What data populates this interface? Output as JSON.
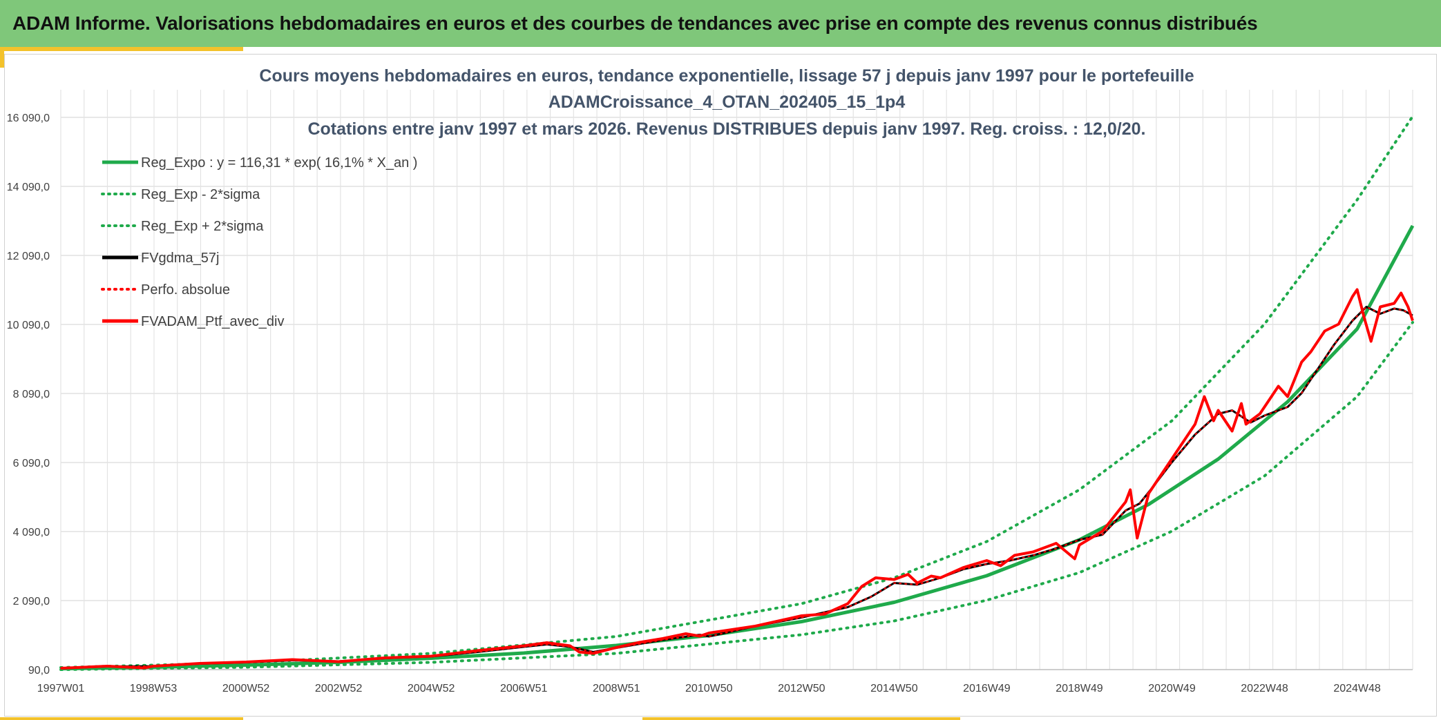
{
  "header": {
    "title": "ADAM Informe. Valorisations hebdomadaires en euros et des courbes de tendances avec prise en compte des revenus connus distribués"
  },
  "colors": {
    "banner": "#7fc77a",
    "accent": "#f3c22b",
    "trend": "#1faa4b",
    "band": "#1faa4b",
    "fv": "#000000",
    "portfolio": "#ff0000"
  },
  "chart_data": {
    "type": "line",
    "title_lines": [
      "Cours moyens hebdomadaires en euros, tendance exponentielle, lissage 57 j depuis janv 1997 pour le portefeuille",
      "ADAMCroissance_4_OTAN_202405_15_1p4",
      "Cotations entre janv 1997 et mars 2026. Revenus DISTRIBUES depuis janv 1997. Reg. croiss. : 12,0/20."
    ],
    "x_tick_labels": [
      "1997W01",
      "1998W53",
      "2000W52",
      "2002W52",
      "2004W52",
      "2006W51",
      "2008W51",
      "2010W50",
      "2012W50",
      "2014W50",
      "2016W49",
      "2018W49",
      "2020W49",
      "2022W48",
      "2024W48"
    ],
    "x_range_years": [
      1997.0,
      2026.2
    ],
    "y_ticks": [
      90,
      2090,
      4090,
      6090,
      8090,
      10090,
      12090,
      14090,
      16090
    ],
    "y_tick_labels": [
      "90,0",
      "2 090,0",
      "4 090,0",
      "6 090,0",
      "8 090,0",
      "10 090,0",
      "12 090,0",
      "14 090,0",
      "16 090,0"
    ],
    "ylim": [
      90,
      16090
    ],
    "grid": true,
    "legend_position": "top-left",
    "legend": [
      {
        "label": "Reg_Expo : y = 116,31 * exp( 16,1% *  X_an )",
        "style": "solid",
        "color": "#1faa4b"
      },
      {
        "label": "Reg_Exp - 2*sigma",
        "style": "dotted",
        "color": "#1faa4b"
      },
      {
        "label": "Reg_Exp + 2*sigma",
        "style": "dotted",
        "color": "#1faa4b"
      },
      {
        "label": "FVgdma_57j",
        "style": "solid",
        "color": "#000000"
      },
      {
        "label": "Perfo. absolue",
        "style": "dotted",
        "color": "#ff0000"
      },
      {
        "label": "FVADAM_Ptf_avec_div",
        "style": "solid",
        "color": "#ff0000"
      }
    ],
    "series": [
      {
        "name": "Reg_Expo : y = 116,31 * exp( 16,1% *  X_an )",
        "x": [
          1997.0,
          1999.0,
          2001.0,
          2003.0,
          2005.0,
          2007.0,
          2009.0,
          2011.0,
          2013.0,
          2015.0,
          2017.0,
          2019.0,
          2020.5,
          2022.0,
          2023.5,
          2025.0,
          2026.2
        ],
        "y": [
          116,
          160,
          220,
          300,
          420,
          570,
          790,
          1080,
          1480,
          2040,
          2810,
          3850,
          4880,
          6190,
          7850,
          9960,
          12950
        ]
      },
      {
        "name": "Reg_Exp - 2*sigma",
        "x": [
          1997.0,
          2001.0,
          2005.0,
          2009.0,
          2013.0,
          2015.0,
          2017.0,
          2019.0,
          2021.0,
          2023.0,
          2025.0,
          2026.2
        ],
        "y": [
          90,
          160,
          300,
          560,
          1100,
          1500,
          2100,
          2900,
          4100,
          5700,
          8000,
          10150
        ]
      },
      {
        "name": "Reg_Exp + 2*sigma",
        "x": [
          1997.0,
          2001.0,
          2005.0,
          2009.0,
          2013.0,
          2015.0,
          2017.0,
          2019.0,
          2021.0,
          2023.0,
          2025.0,
          2026.2
        ],
        "y": [
          150,
          290,
          560,
          1050,
          2000,
          2750,
          3800,
          5300,
          7300,
          10100,
          13700,
          16120
        ]
      },
      {
        "name": "FVgdma_57j",
        "x": [
          1997.0,
          1998.0,
          1999.0,
          2000.0,
          2001.0,
          2002.0,
          2003.0,
          2004.0,
          2005.0,
          2006.0,
          2007.0,
          2007.5,
          2008.0,
          2008.5,
          2009.0,
          2010.0,
          2010.8,
          2011.0,
          2012.0,
          2013.0,
          2014.0,
          2014.5,
          2015.0,
          2015.5,
          2016.0,
          2016.5,
          2017.0,
          2017.5,
          2018.0,
          2018.5,
          2019.0,
          2019.5,
          2020.0,
          2020.3,
          2020.6,
          2021.0,
          2021.5,
          2022.0,
          2022.3,
          2022.7,
          2023.0,
          2023.5,
          2023.8,
          2024.2,
          2024.5,
          2024.9,
          2025.2,
          2025.5,
          2025.8,
          2026.0,
          2026.2
        ],
        "y": [
          130,
          180,
          190,
          260,
          300,
          360,
          330,
          420,
          470,
          600,
          750,
          820,
          750,
          600,
          720,
          950,
          1100,
          1050,
          1350,
          1600,
          1900,
          2200,
          2600,
          2550,
          2750,
          3000,
          3150,
          3250,
          3400,
          3600,
          3850,
          4000,
          4700,
          4900,
          5400,
          6100,
          6900,
          7500,
          7600,
          7250,
          7450,
          7700,
          8100,
          8900,
          9500,
          10200,
          10600,
          10400,
          10550,
          10500,
          10350
        ]
      },
      {
        "name": "Perfo. absolue",
        "x": [
          1997.0,
          1998.0,
          1999.0,
          2000.0,
          2001.0,
          2002.0,
          2003.0,
          2004.0,
          2005.0,
          2006.0,
          2007.0,
          2007.5,
          2008.0,
          2008.5,
          2009.0,
          2010.0,
          2010.8,
          2011.0,
          2012.0,
          2013.0,
          2014.0,
          2014.5,
          2015.0,
          2015.5,
          2016.0,
          2016.5,
          2017.0,
          2017.5,
          2018.0,
          2018.5,
          2019.0,
          2019.5,
          2020.0,
          2020.3,
          2020.6,
          2021.0,
          2021.5,
          2022.0,
          2022.3,
          2022.7,
          2023.0,
          2023.5,
          2023.8,
          2024.2,
          2024.5,
          2024.9,
          2025.2,
          2025.5,
          2025.8,
          2026.0,
          2026.2
        ],
        "y": [
          130,
          180,
          190,
          260,
          300,
          360,
          330,
          420,
          470,
          600,
          750,
          820,
          750,
          600,
          720,
          950,
          1100,
          1050,
          1350,
          1600,
          1900,
          2200,
          2600,
          2550,
          2750,
          3000,
          3150,
          3250,
          3400,
          3600,
          3850,
          4000,
          4700,
          4900,
          5400,
          6100,
          6900,
          7500,
          7600,
          7250,
          7450,
          7700,
          8100,
          8900,
          9500,
          10200,
          10600,
          10400,
          10550,
          10500,
          10350
        ]
      },
      {
        "name": "FVADAM_Ptf_avec_div",
        "x": [
          1997.0,
          1998.0,
          1998.8,
          1999.0,
          2000.0,
          2001.0,
          2002.0,
          2003.0,
          2004.0,
          2005.0,
          2006.0,
          2007.0,
          2007.5,
          2008.0,
          2008.2,
          2008.5,
          2009.0,
          2009.5,
          2010.0,
          2010.5,
          2010.8,
          2011.0,
          2011.5,
          2012.0,
          2013.0,
          2013.5,
          2014.0,
          2014.3,
          2014.6,
          2015.0,
          2015.3,
          2015.5,
          2015.8,
          2016.0,
          2016.5,
          2017.0,
          2017.3,
          2017.6,
          2018.0,
          2018.5,
          2018.9,
          2019.0,
          2019.5,
          2020.0,
          2020.1,
          2020.25,
          2020.5,
          2021.0,
          2021.5,
          2021.7,
          2021.9,
          2022.0,
          2022.3,
          2022.5,
          2022.6,
          2022.9,
          2023.0,
          2023.3,
          2023.5,
          2023.8,
          2024.0,
          2024.3,
          2024.6,
          2024.9,
          2025.0,
          2025.15,
          2025.3,
          2025.5,
          2025.8,
          2025.95,
          2026.1,
          2026.2
        ],
        "y": [
          130,
          190,
          140,
          190,
          270,
          310,
          380,
          320,
          430,
          480,
          640,
          780,
          870,
          780,
          600,
          560,
          730,
          880,
          990,
          1130,
          1060,
          1150,
          1250,
          1350,
          1650,
          1700,
          2000,
          2500,
          2750,
          2700,
          2850,
          2600,
          2800,
          2750,
          3050,
          3250,
          3100,
          3400,
          3500,
          3750,
          3300,
          3700,
          4100,
          4950,
          5300,
          3900,
          5200,
          6200,
          7200,
          8000,
          7300,
          7600,
          7000,
          7800,
          7200,
          7500,
          7700,
          8300,
          8000,
          9000,
          9300,
          9900,
          10100,
          10900,
          11100,
          10300,
          9600,
          10600,
          10700,
          11000,
          10600,
          10200
        ]
      }
    ]
  }
}
